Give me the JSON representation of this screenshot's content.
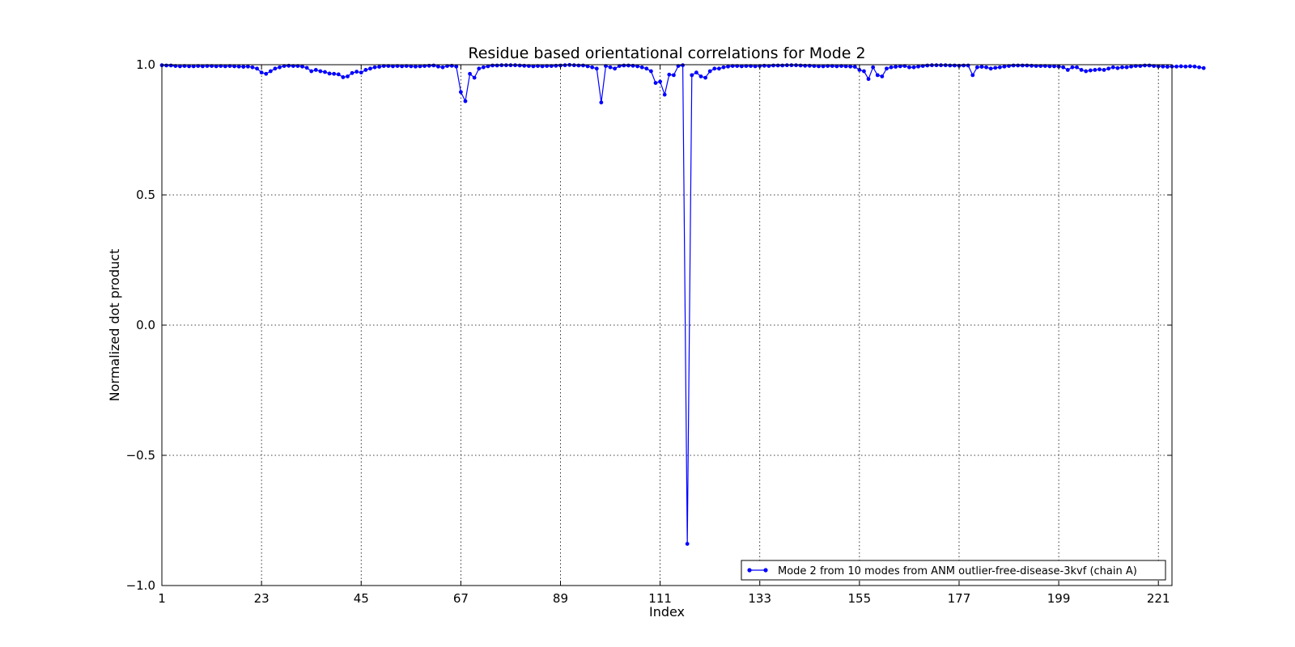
{
  "chart_data": {
    "type": "line",
    "title": "Residue based orientational correlations for Mode 2",
    "xlabel": "Index",
    "ylabel": "Normalized dot product",
    "xlim": [
      1,
      224
    ],
    "ylim": [
      -1.0,
      1.0
    ],
    "x_ticks": [
      1,
      23,
      45,
      67,
      89,
      111,
      133,
      155,
      177,
      199,
      221
    ],
    "x_tick_labels": [
      "1",
      "23",
      "45",
      "67",
      "89",
      "111",
      "133",
      "155",
      "177",
      "199",
      "221"
    ],
    "y_ticks": [
      -1.0,
      -0.5,
      0.0,
      0.5,
      1.0
    ],
    "y_tick_labels": [
      "−1.0",
      "−0.5",
      "0.0",
      "0.5",
      "1.0"
    ],
    "grid": true,
    "legend_position": "bottom-right",
    "series": [
      {
        "name": "Mode 2 from 10 modes from ANM outlier-free-disease-3kvf (chain A)",
        "color": "#0000ff",
        "marker": "dot",
        "values": [
          0.998,
          0.997,
          0.997,
          0.995,
          0.994,
          0.995,
          0.994,
          0.994,
          0.995,
          0.994,
          0.995,
          0.995,
          0.994,
          0.995,
          0.994,
          0.995,
          0.994,
          0.993,
          0.992,
          0.993,
          0.99,
          0.985,
          0.97,
          0.965,
          0.975,
          0.985,
          0.99,
          0.995,
          0.996,
          0.995,
          0.995,
          0.993,
          0.988,
          0.975,
          0.98,
          0.975,
          0.972,
          0.966,
          0.965,
          0.963,
          0.952,
          0.955,
          0.968,
          0.973,
          0.97,
          0.98,
          0.985,
          0.99,
          0.992,
          0.995,
          0.995,
          0.994,
          0.995,
          0.994,
          0.995,
          0.994,
          0.993,
          0.994,
          0.995,
          0.996,
          0.997,
          0.993,
          0.99,
          0.995,
          0.996,
          0.993,
          0.895,
          0.86,
          0.965,
          0.95,
          0.985,
          0.99,
          0.994,
          0.997,
          0.997,
          0.998,
          0.998,
          0.998,
          0.998,
          0.997,
          0.996,
          0.995,
          0.994,
          0.995,
          0.994,
          0.995,
          0.995,
          0.996,
          0.997,
          0.998,
          0.999,
          0.998,
          0.997,
          0.997,
          0.994,
          0.99,
          0.985,
          0.855,
          0.995,
          0.99,
          0.985,
          0.995,
          0.997,
          0.997,
          0.996,
          0.994,
          0.99,
          0.985,
          0.975,
          0.93,
          0.935,
          0.885,
          0.962,
          0.96,
          0.995,
          0.998,
          -0.84,
          0.96,
          0.97,
          0.955,
          0.95,
          0.975,
          0.985,
          0.985,
          0.99,
          0.993,
          0.995,
          0.995,
          0.994,
          0.995,
          0.995,
          0.994,
          0.995,
          0.996,
          0.995,
          0.997,
          0.997,
          0.997,
          0.998,
          0.998,
          0.998,
          0.997,
          0.996,
          0.996,
          0.995,
          0.994,
          0.994,
          0.995,
          0.995,
          0.994,
          0.995,
          0.994,
          0.993,
          0.992,
          0.98,
          0.975,
          0.945,
          0.99,
          0.96,
          0.955,
          0.985,
          0.99,
          0.992,
          0.994,
          0.995,
          0.99,
          0.99,
          0.993,
          0.995,
          0.997,
          0.998,
          0.998,
          0.998,
          0.998,
          0.997,
          0.997,
          0.996,
          0.997,
          0.997,
          0.96,
          0.99,
          0.992,
          0.99,
          0.985,
          0.988,
          0.99,
          0.993,
          0.995,
          0.997,
          0.997,
          0.997,
          0.997,
          0.996,
          0.995,
          0.995,
          0.995,
          0.994,
          0.994,
          0.993,
          0.99,
          0.98,
          0.99,
          0.99,
          0.98,
          0.975,
          0.978,
          0.98,
          0.982,
          0.98,
          0.985,
          0.99,
          0.987,
          0.99,
          0.99,
          0.993,
          0.995,
          0.995,
          0.997,
          0.997,
          0.995,
          0.994,
          0.993,
          0.992,
          0.993,
          0.993,
          0.994,
          0.993,
          0.994,
          0.993,
          0.99,
          0.987
        ]
      }
    ]
  }
}
